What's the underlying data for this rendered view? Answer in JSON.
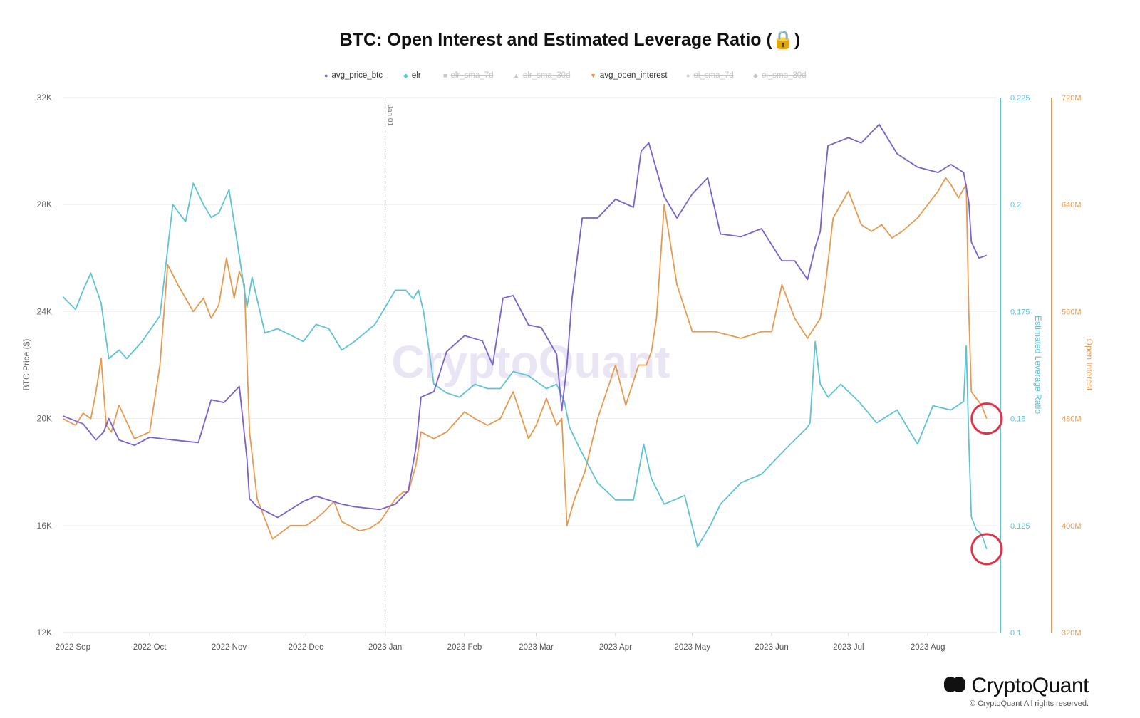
{
  "title": "BTC: Open Interest and Estimated Leverage Ratio (🔒)",
  "legend": [
    {
      "label": "avg_price_btc",
      "color": "#7b61cc",
      "marker": "●",
      "enabled": true
    },
    {
      "label": "elr",
      "color": "#5fc3d4",
      "marker": "◆",
      "enabled": true
    },
    {
      "label": "elr_sma_7d",
      "color": "#c4c4c4",
      "marker": "■",
      "enabled": false
    },
    {
      "label": "elr_sma_30d",
      "color": "#c4c4c4",
      "marker": "▲",
      "enabled": false
    },
    {
      "label": "avg_open_interest",
      "color": "#e69a50",
      "marker": "▼",
      "enabled": true
    },
    {
      "label": "oi_sma_7d",
      "color": "#c4c4c4",
      "marker": "●",
      "enabled": false
    },
    {
      "label": "oi_sma_30d",
      "color": "#c4c4c4",
      "marker": "◆",
      "enabled": false
    }
  ],
  "watermark": "CryptoQuant",
  "brand": "CryptoQuant",
  "copyright": "© CryptoQuant All rights reserved.",
  "colors": {
    "price": "#7b61cc",
    "elr": "#5fc3d4",
    "oi": "#e69a50",
    "circle": "#e0334a"
  },
  "chart_data": {
    "type": "line",
    "grid": true,
    "x_ticks": [
      "2022 Sep",
      "2022 Oct",
      "2022 Nov",
      "2022 Dec",
      "2023 Jan",
      "2023 Feb",
      "2023 Mar",
      "2023 Apr",
      "2023 May",
      "2023 Jun",
      "2023 Jul",
      "2023 Aug"
    ],
    "annotation": "Jan 01",
    "axes": {
      "left": {
        "label": "BTC Price ($)",
        "ticks": [
          "12K",
          "16K",
          "20K",
          "24K",
          "28K",
          "32K"
        ],
        "range": [
          12000,
          32000
        ]
      },
      "right1": {
        "label": "Estimated Leverage Ratio",
        "ticks": [
          "0.1",
          "0.125",
          "0.15",
          "0.175",
          "0.2",
          "0.225"
        ],
        "range": [
          0.1,
          0.225
        ]
      },
      "right2": {
        "label": "Open Interest",
        "ticks": [
          "320M",
          "400M",
          "480M",
          "560M",
          "640M",
          "720M"
        ],
        "range": [
          320,
          720
        ]
      }
    },
    "series": [
      {
        "name": "avg_price_btc",
        "axis": "left",
        "x": [
          "2022-08-28",
          "2022-09-05",
          "2022-09-10",
          "2022-09-13",
          "2022-09-15",
          "2022-09-19",
          "2022-09-25",
          "2022-10-01",
          "2022-10-10",
          "2022-10-20",
          "2022-10-25",
          "2022-10-30",
          "2022-11-05",
          "2022-11-08",
          "2022-11-09",
          "2022-11-12",
          "2022-11-20",
          "2022-11-30",
          "2022-12-05",
          "2022-12-15",
          "2022-12-20",
          "2022-12-30",
          "2023-01-05",
          "2023-01-10",
          "2023-01-13",
          "2023-01-15",
          "2023-01-20",
          "2023-01-25",
          "2023-02-01",
          "2023-02-08",
          "2023-02-12",
          "2023-02-16",
          "2023-02-20",
          "2023-02-26",
          "2023-03-03",
          "2023-03-09",
          "2023-03-11",
          "2023-03-13",
          "2023-03-15",
          "2023-03-19",
          "2023-03-25",
          "2023-04-01",
          "2023-04-08",
          "2023-04-11",
          "2023-04-14",
          "2023-04-20",
          "2023-04-25",
          "2023-05-01",
          "2023-05-07",
          "2023-05-12",
          "2023-05-20",
          "2023-05-28",
          "2023-06-05",
          "2023-06-10",
          "2023-06-15",
          "2023-06-18",
          "2023-06-20",
          "2023-06-21",
          "2023-06-23",
          "2023-07-01",
          "2023-07-06",
          "2023-07-13",
          "2023-07-20",
          "2023-07-28",
          "2023-08-05",
          "2023-08-10",
          "2023-08-15",
          "2023-08-17",
          "2023-08-18",
          "2023-08-21",
          "2023-08-24"
        ],
        "y": [
          20100,
          19800,
          19200,
          19500,
          20000,
          19200,
          19000,
          19300,
          19200,
          19100,
          20700,
          20600,
          21200,
          18500,
          17000,
          16700,
          16300,
          16900,
          17100,
          16800,
          16700,
          16600,
          16800,
          17300,
          18900,
          20800,
          21000,
          22500,
          23100,
          22900,
          22000,
          24500,
          24600,
          23500,
          23400,
          22400,
          20300,
          22000,
          24500,
          27500,
          27500,
          28200,
          27900,
          30000,
          30300,
          28300,
          27500,
          28400,
          29000,
          26900,
          26800,
          27100,
          25900,
          25900,
          25200,
          26400,
          27000,
          28300,
          30200,
          30500,
          30300,
          31000,
          29900,
          29400,
          29200,
          29500,
          29200,
          28100,
          26600,
          26000,
          26100
        ]
      },
      {
        "name": "elr",
        "axis": "right1",
        "x": [
          "2022-08-28",
          "2022-09-02",
          "2022-09-05",
          "2022-09-08",
          "2022-09-12",
          "2022-09-15",
          "2022-09-19",
          "2022-09-22",
          "2022-09-28",
          "2022-10-05",
          "2022-10-10",
          "2022-10-15",
          "2022-10-18",
          "2022-10-22",
          "2022-10-25",
          "2022-10-28",
          "2022-11-01",
          "2022-11-05",
          "2022-11-08",
          "2022-11-10",
          "2022-11-15",
          "2022-11-20",
          "2022-11-30",
          "2022-12-05",
          "2022-12-10",
          "2022-12-15",
          "2022-12-20",
          "2022-12-28",
          "2023-01-01",
          "2023-01-05",
          "2023-01-09",
          "2023-01-12",
          "2023-01-14",
          "2023-01-16",
          "2023-01-20",
          "2023-01-25",
          "2023-01-30",
          "2023-02-05",
          "2023-02-10",
          "2023-02-15",
          "2023-02-20",
          "2023-02-26",
          "2023-03-05",
          "2023-03-09",
          "2023-03-12",
          "2023-03-14",
          "2023-03-18",
          "2023-03-25",
          "2023-04-01",
          "2023-04-08",
          "2023-04-12",
          "2023-04-15",
          "2023-04-20",
          "2023-04-28",
          "2023-05-03",
          "2023-05-08",
          "2023-05-12",
          "2023-05-20",
          "2023-05-28",
          "2023-06-05",
          "2023-06-10",
          "2023-06-15",
          "2023-06-16",
          "2023-06-18",
          "2023-06-20",
          "2023-06-23",
          "2023-06-28",
          "2023-07-05",
          "2023-07-12",
          "2023-07-20",
          "2023-07-28",
          "2023-08-03",
          "2023-08-10",
          "2023-08-15",
          "2023-08-16",
          "2023-08-17",
          "2023-08-18",
          "2023-08-20",
          "2023-08-22",
          "2023-08-24"
        ],
        "y": [
          0.1785,
          0.1755,
          0.18,
          0.184,
          0.177,
          0.164,
          0.166,
          0.164,
          0.168,
          0.174,
          0.2,
          0.196,
          0.205,
          0.2,
          0.197,
          0.198,
          0.2035,
          0.188,
          0.176,
          0.183,
          0.17,
          0.171,
          0.168,
          0.172,
          0.171,
          0.166,
          0.168,
          0.172,
          0.176,
          0.18,
          0.18,
          0.178,
          0.18,
          0.175,
          0.158,
          0.156,
          0.155,
          0.158,
          0.157,
          0.157,
          0.161,
          0.16,
          0.157,
          0.158,
          0.154,
          0.148,
          0.143,
          0.135,
          0.131,
          0.131,
          0.144,
          0.136,
          0.13,
          0.132,
          0.12,
          0.125,
          0.13,
          0.135,
          0.137,
          0.142,
          0.145,
          0.148,
          0.149,
          0.168,
          0.158,
          0.155,
          0.158,
          0.154,
          0.149,
          0.152,
          0.144,
          0.153,
          0.152,
          0.154,
          0.167,
          0.145,
          0.127,
          0.124,
          0.123,
          0.1195
        ]
      },
      {
        "name": "avg_open_interest",
        "axis": "right2",
        "x": [
          "2022-08-28",
          "2022-09-02",
          "2022-09-05",
          "2022-09-08",
          "2022-09-10",
          "2022-09-12",
          "2022-09-14",
          "2022-09-16",
          "2022-09-19",
          "2022-09-25",
          "2022-10-01",
          "2022-10-05",
          "2022-10-08",
          "2022-10-12",
          "2022-10-15",
          "2022-10-18",
          "2022-10-22",
          "2022-10-25",
          "2022-10-28",
          "2022-10-31",
          "2022-11-03",
          "2022-11-05",
          "2022-11-07",
          "2022-11-09",
          "2022-11-12",
          "2022-11-18",
          "2022-11-25",
          "2022-12-01",
          "2022-12-05",
          "2022-12-08",
          "2022-12-12",
          "2022-12-15",
          "2022-12-18",
          "2022-12-22",
          "2022-12-26",
          "2022-12-30",
          "2023-01-05",
          "2023-01-08",
          "2023-01-10",
          "2023-01-13",
          "2023-01-15",
          "2023-01-20",
          "2023-01-25",
          "2023-02-01",
          "2023-02-05",
          "2023-02-10",
          "2023-02-15",
          "2023-02-20",
          "2023-02-26",
          "2023-03-01",
          "2023-03-05",
          "2023-03-09",
          "2023-03-11",
          "2023-03-13",
          "2023-03-16",
          "2023-03-20",
          "2023-03-25",
          "2023-04-01",
          "2023-04-05",
          "2023-04-10",
          "2023-04-13",
          "2023-04-15",
          "2023-04-17",
          "2023-04-20",
          "2023-04-25",
          "2023-05-01",
          "2023-05-10",
          "2023-05-20",
          "2023-05-28",
          "2023-06-01",
          "2023-06-05",
          "2023-06-10",
          "2023-06-15",
          "2023-06-20",
          "2023-06-22",
          "2023-06-25",
          "2023-07-01",
          "2023-07-06",
          "2023-07-10",
          "2023-07-14",
          "2023-07-18",
          "2023-07-22",
          "2023-07-28",
          "2023-08-01",
          "2023-08-05",
          "2023-08-08",
          "2023-08-10",
          "2023-08-13",
          "2023-08-16",
          "2023-08-17",
          "2023-08-18",
          "2023-08-20",
          "2023-08-22",
          "2023-08-24"
        ],
        "y": [
          480,
          475,
          484,
          480,
          500,
          525,
          475,
          470,
          490,
          465,
          470,
          520,
          595,
          580,
          570,
          560,
          570,
          555,
          565,
          600,
          570,
          590,
          580,
          470,
          420,
          390,
          400,
          400,
          405,
          410,
          418,
          403,
          400,
          396,
          398,
          403,
          420,
          425,
          425,
          445,
          470,
          465,
          470,
          485,
          480,
          475,
          480,
          500,
          465,
          475,
          495,
          475,
          480,
          400,
          420,
          440,
          480,
          520,
          490,
          520,
          520,
          530,
          555,
          640,
          580,
          545,
          545,
          540,
          545,
          545,
          580,
          555,
          540,
          555,
          580,
          630,
          650,
          625,
          620,
          625,
          615,
          620,
          630,
          640,
          650,
          660,
          655,
          645,
          655,
          560,
          500,
          495,
          490,
          480
        ]
      }
    ],
    "highlights": [
      "elr last point",
      "avg_open_interest last point"
    ]
  }
}
